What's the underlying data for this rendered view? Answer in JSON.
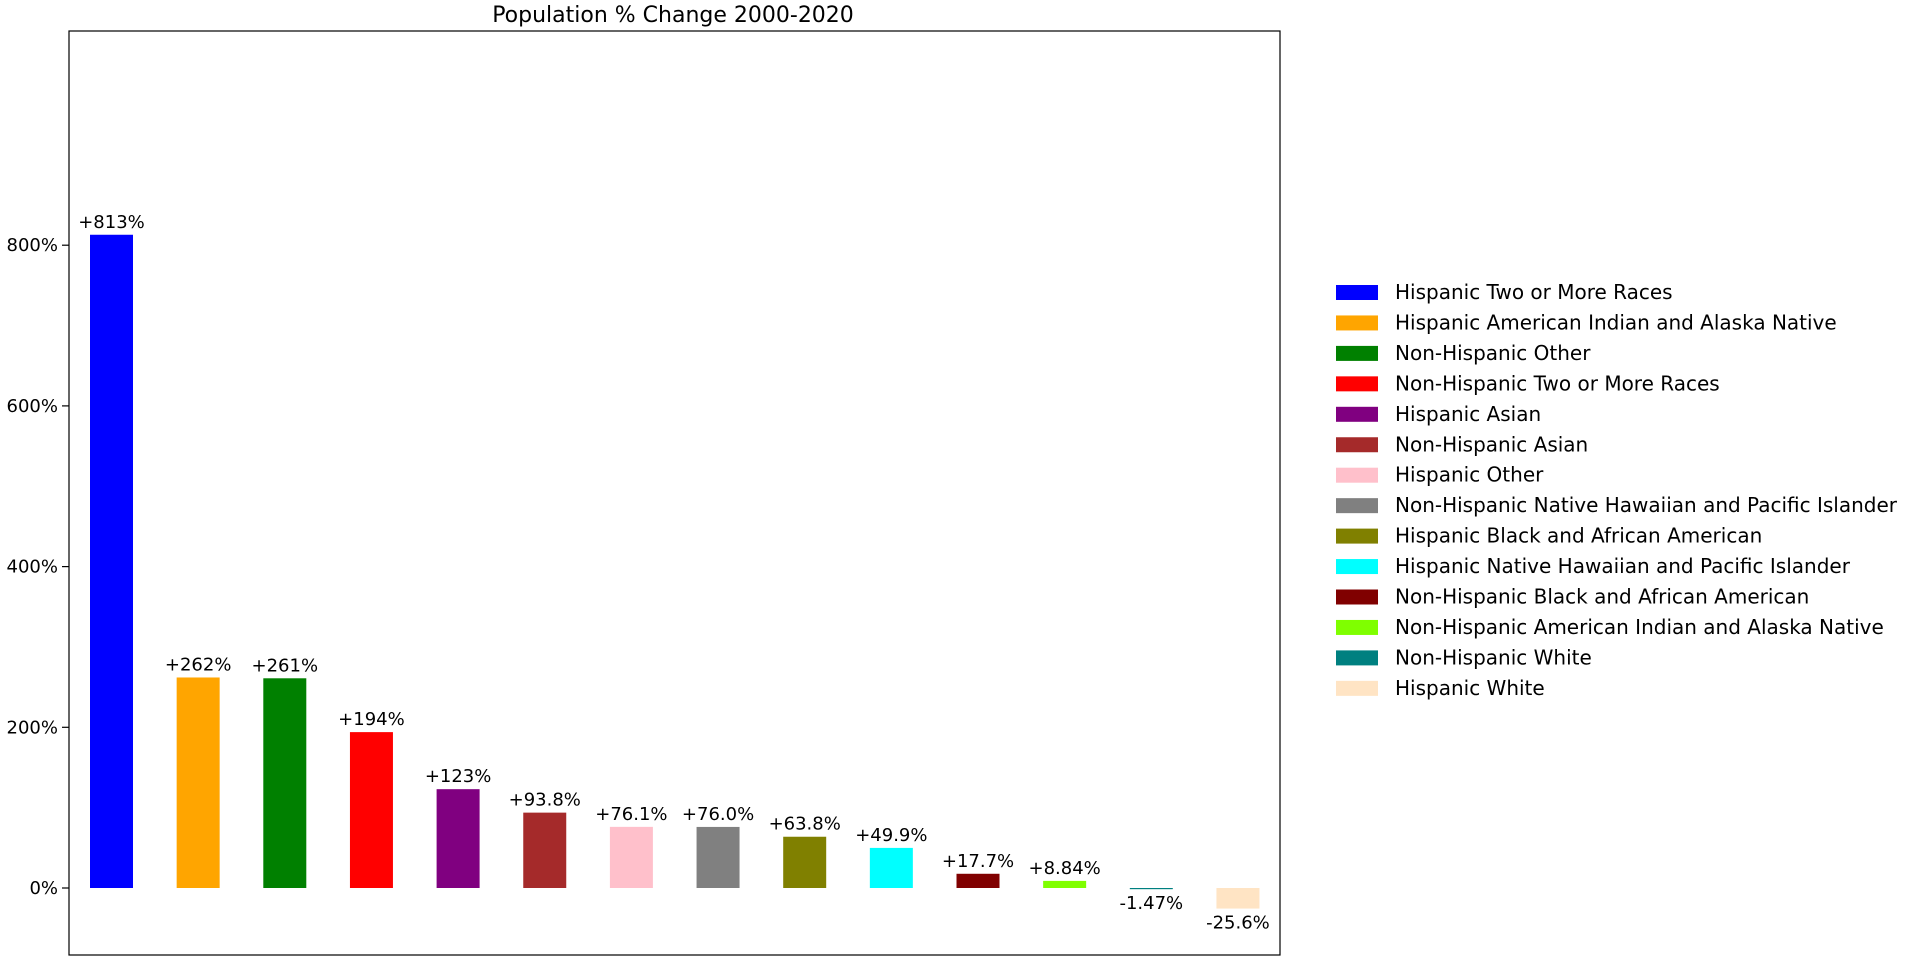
{
  "chart_data": {
    "type": "bar",
    "title": "Population % Change 2000-2020",
    "xlabel": "",
    "ylabel": "",
    "ylim": [
      -67,
      855
    ],
    "yticks": [
      0,
      200,
      400,
      600,
      800
    ],
    "ytick_labels": [
      "0%",
      "200%",
      "400%",
      "600%",
      "800%"
    ],
    "grid": false,
    "legend_position": "right",
    "categories": [
      "Hispanic Two or More Races",
      "Hispanic American Indian and Alaska Native",
      "Non-Hispanic Other",
      "Non-Hispanic Two or More Races",
      "Hispanic Asian",
      "Non-Hispanic Asian",
      "Hispanic Other",
      "Non-Hispanic Native Hawaiian and Pacific Islander",
      "Hispanic Black and African American",
      "Hispanic Native Hawaiian and Pacific Islander",
      "Non-Hispanic Black and African American",
      "Non-Hispanic American Indian and Alaska Native",
      "Non-Hispanic White",
      "Hispanic White"
    ],
    "values": [
      813,
      262,
      261,
      194,
      123,
      93.8,
      76.1,
      76.0,
      63.8,
      49.9,
      17.7,
      8.84,
      -1.47,
      -25.6
    ],
    "data_labels": [
      "+813%",
      "+262%",
      "+261%",
      "+194%",
      "+123%",
      "+93.8%",
      "+76.1%",
      "+76.0%",
      "+63.8%",
      "+49.9%",
      "+17.7%",
      "+8.84%",
      "-1.47%",
      "-25.6%"
    ],
    "colors": [
      "#0000ff",
      "#ffa500",
      "#008000",
      "#ff0000",
      "#800080",
      "#a52a2a",
      "#ffc0cb",
      "#808080",
      "#808000",
      "#00ffff",
      "#800000",
      "#7fff00",
      "#008080",
      "#ffe4c4"
    ]
  }
}
